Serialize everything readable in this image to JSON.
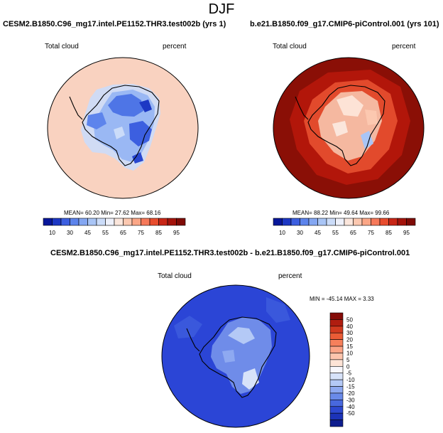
{
  "figure": {
    "title": "DJF"
  },
  "panels": [
    {
      "title": "CESM2.B1850.C96_mg17.intel.PE1152.THR3.test002b (yrs 1)",
      "left_label": "Total cloud",
      "right_label": "percent",
      "stats": "MEAN=  60.20  Min=  27.62  Max=  68.16",
      "colorbar": {
        "labels": [
          "10",
          "30",
          "45",
          "55",
          "65",
          "75",
          "85",
          "95"
        ],
        "colors": [
          "#08179a",
          "#1d38c4",
          "#3c5fe0",
          "#5d84ec",
          "#84a7f2",
          "#a9c5f6",
          "#cbdcf9",
          "#eef1fb",
          "#fbe6dc",
          "#fcc8b0",
          "#fba686",
          "#f6795a",
          "#e84d2e",
          "#c82616",
          "#a4130b",
          "#7f0b06"
        ]
      },
      "map": {
        "background": "#f9d2c0",
        "interior_base": "#9ab8f4"
      }
    },
    {
      "title": "b.e21.B1850.f09_g17.CMIP6-piControl.001 (yrs 101)",
      "left_label": "Total cloud",
      "right_label": "percent",
      "stats": "MEAN=  88.22  Min=  49.64  Max=  99.66",
      "colorbar": {
        "labels": [
          "10",
          "30",
          "45",
          "55",
          "65",
          "75",
          "85",
          "95"
        ],
        "colors": [
          "#08179a",
          "#1d38c4",
          "#3c5fe0",
          "#5d84ec",
          "#84a7f2",
          "#a9c5f6",
          "#cbdcf9",
          "#eef1fb",
          "#fbe6dc",
          "#fcc8b0",
          "#fba686",
          "#f6795a",
          "#e84d2e",
          "#c82616",
          "#a4130b",
          "#7f0b06"
        ]
      },
      "map": {
        "background": "#8a0f06",
        "interior_base": "#f5b8a0"
      }
    },
    {
      "title": "CESM2.B1850.C96_mg17.intel.PE1152.THR3.test002b - b.e21.B1850.f09_g17.CMIP6-piControl.001",
      "left_label": "Total cloud",
      "right_label": "percent",
      "stats": "MIN = -45.14 MAX =   3.33",
      "colorbar": {
        "labels": [
          "50",
          "40",
          "30",
          "20",
          "15",
          "10",
          "5",
          "0",
          "-5",
          "-10",
          "-15",
          "-20",
          "-30",
          "-40",
          "-50"
        ],
        "colors": [
          "#850c08",
          "#b01d10",
          "#d13a1f",
          "#ea5c36",
          "#f6805b",
          "#fca486",
          "#fec5ad",
          "#fde3d6",
          "#f8f7fc",
          "#d7e2f9",
          "#b4c9f6",
          "#8ea9f1",
          "#6a8ae9",
          "#4868de",
          "#2d48d0",
          "#1c33b8",
          "#0e1d8e"
        ]
      },
      "map": {
        "background": "#2b45d6",
        "interior_base": "#6f8ce9"
      }
    }
  ]
}
